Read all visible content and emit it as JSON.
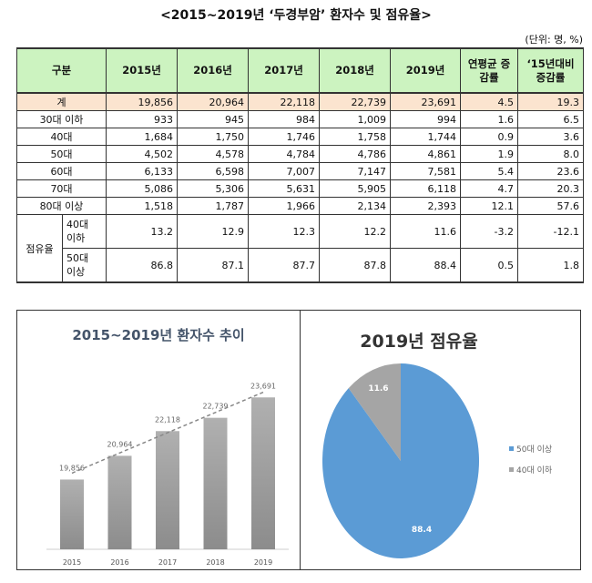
{
  "title": "<2015~2019년 ‘두경부암’ 환자수 및 점유율>",
  "unit": "(단위: 명, %)",
  "table": {
    "headers": [
      "구분",
      "2015년",
      "2016년",
      "2017년",
      "2018년",
      "2019년",
      "연평균 증감률",
      "‘15년대비 증감률"
    ],
    "rows": [
      {
        "label": "계",
        "values": [
          "19,856",
          "20,964",
          "22,118",
          "22,739",
          "23,691",
          "4.5",
          "19.3"
        ]
      },
      {
        "label": "30대 이하",
        "values": [
          "933",
          "945",
          "984",
          "1,009",
          "994",
          "1.6",
          "6.5"
        ]
      },
      {
        "label": "40대",
        "values": [
          "1,684",
          "1,750",
          "1,746",
          "1,758",
          "1,744",
          "0.9",
          "3.6"
        ]
      },
      {
        "label": "50대",
        "values": [
          "4,502",
          "4,578",
          "4,784",
          "4,786",
          "4,861",
          "1.9",
          "8.0"
        ]
      },
      {
        "label": "60대",
        "values": [
          "6,133",
          "6,598",
          "7,007",
          "7,147",
          "7,581",
          "5.4",
          "23.6"
        ]
      },
      {
        "label": "70대",
        "values": [
          "5,086",
          "5,306",
          "5,631",
          "5,905",
          "6,118",
          "4.7",
          "20.3"
        ]
      },
      {
        "label": "80대 이상",
        "values": [
          "1,518",
          "1,787",
          "1,966",
          "2,134",
          "2,393",
          "12.1",
          "57.6"
        ]
      }
    ],
    "share_label": "점유율",
    "share_rows": [
      {
        "label": "40대 이하",
        "values": [
          "13.2",
          "12.9",
          "12.3",
          "12.2",
          "11.6",
          "-3.2",
          "-12.1"
        ]
      },
      {
        "label": "50대 이상",
        "values": [
          "86.8",
          "87.1",
          "87.7",
          "87.8",
          "88.4",
          "0.5",
          "1.8"
        ]
      }
    ]
  },
  "chart_data": [
    {
      "type": "bar",
      "title": "2015~2019년 환자수 추이",
      "categories": [
        "2015",
        "2016",
        "2017",
        "2018",
        "2019"
      ],
      "values": [
        19856,
        20964,
        22118,
        22739,
        23691
      ],
      "labels": [
        "19,856",
        "20,964",
        "22,118",
        "22,739",
        "23,691"
      ],
      "trendline": "dashed linear",
      "color": "#a6a6a6",
      "ylim": [
        16600,
        24000
      ],
      "grid": false
    },
    {
      "type": "pie",
      "title": "2019년 점유율",
      "slices": [
        {
          "name": "50대 이상",
          "value": 88.4,
          "label": "88.4",
          "color": "#5b9bd5"
        },
        {
          "name": "40대 이하",
          "value": 11.6,
          "label": "11.6",
          "color": "#a5a5a5"
        }
      ],
      "legend": "right"
    }
  ]
}
